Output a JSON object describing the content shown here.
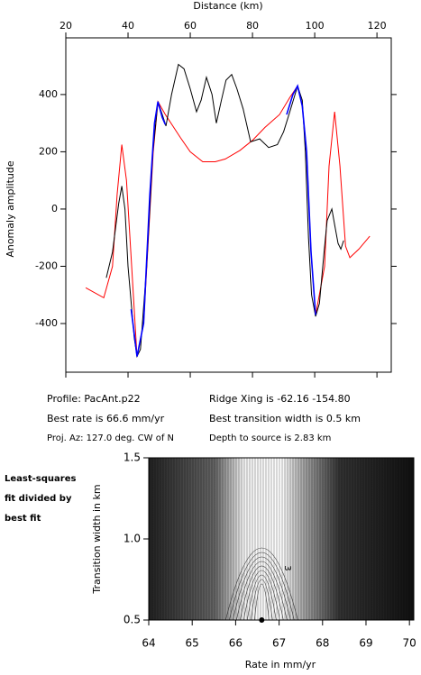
{
  "chart_data": [
    {
      "type": "line",
      "xlabel": "Distance (km)",
      "ylabel": "Anomaly amplitude",
      "xlim": [
        20,
        124.6
      ],
      "ylim": [
        -570,
        598
      ],
      "xticks": [
        20,
        40,
        60,
        80,
        100,
        120
      ],
      "yticks": [
        -400,
        -200,
        0,
        200,
        400
      ],
      "series": [
        {
          "color": "#ff0000",
          "x": [
            26.4,
            32.2,
            35,
            36.5,
            38,
            39.5,
            40.9,
            42.9,
            45,
            48.1,
            49.6,
            52,
            56.8,
            60,
            64,
            68,
            71.3,
            76,
            80,
            84,
            88.7,
            92,
            94.5,
            96,
            97.4,
            98.8,
            100.3,
            103.2,
            104.6,
            106.4,
            108.1,
            109.9,
            111.3,
            114.2,
            117.7
          ],
          "values": [
            -275,
            -310,
            -200,
            50,
            225,
            100,
            -150,
            -515,
            -400,
            200,
            375,
            330,
            250,
            200,
            165,
            165,
            175,
            205,
            240,
            285,
            330,
            390,
            430,
            360,
            200,
            -150,
            -370,
            -200,
            150,
            340,
            150,
            -130,
            -170,
            -140,
            -95
          ]
        },
        {
          "color": "#000000",
          "x": [
            33,
            35,
            37,
            38,
            39,
            40,
            42,
            42.9,
            44,
            46,
            48,
            49.6,
            51,
            52.2,
            54,
            56.2,
            58,
            60,
            62,
            63.5,
            65.2,
            67,
            68.4,
            70,
            71.5,
            73.3,
            75,
            77,
            79.4,
            82.3,
            85.2,
            88,
            90,
            92,
            94.5,
            96,
            97,
            98,
            99,
            100.3,
            101.5,
            103,
            104,
            105.5,
            106.5,
            107.5,
            108.4,
            109.3
          ],
          "values": [
            -240,
            -150,
            20,
            80,
            0,
            -200,
            -450,
            -515,
            -490,
            -200,
            200,
            375,
            330,
            290,
            400,
            505,
            490,
            420,
            340,
            380,
            460,
            400,
            300,
            380,
            450,
            470,
            420,
            350,
            235,
            245,
            215,
            225,
            270,
            340,
            430,
            380,
            200,
            -100,
            -300,
            -375,
            -330,
            -150,
            -40,
            0,
            -60,
            -120,
            -140,
            -110
          ]
        },
        {
          "color": "#0000ff",
          "x": [
            41,
            42.9,
            45,
            47,
            48.5,
            49.6,
            51,
            52,
            null,
            91,
            93,
            94.5,
            96,
            97.4,
            98.8,
            100.3
          ],
          "values": [
            -350,
            -515,
            -400,
            50,
            300,
            375,
            320,
            295,
            null,
            330,
            400,
            430,
            360,
            200,
            -150,
            -370
          ]
        }
      ]
    },
    {
      "type": "contour",
      "xlabel": "Rate in mm/yr",
      "ylabel": "Transition width in km",
      "xlim": [
        64,
        70.1
      ],
      "ylim": [
        0.5,
        1.5
      ],
      "xticks": [
        64,
        65,
        66,
        67,
        68,
        69,
        70
      ],
      "yticks": [
        0.5,
        {
          "value": 1,
          "label": "1.0"
        },
        1.5
      ],
      "best_fit": {
        "x": 66.6,
        "y": 0.5
      },
      "contour_labels": [
        {
          "x": 67.2,
          "y": 0.82,
          "text": "3"
        }
      ]
    }
  ],
  "info": {
    "profile": "Profile: PacAnt.p22",
    "rate": "Best rate is 66.6 mm/yr",
    "azimuth": "Proj. Az: 127.0 deg. CW of N",
    "ridge": "Ridge Xing is -62.16 -154.80",
    "width": "Best transition width is 0.5 km",
    "depth": "Depth to source is   2.83 km"
  },
  "side_note": [
    "Least-squares",
    "fit divided by",
    "best fit"
  ]
}
